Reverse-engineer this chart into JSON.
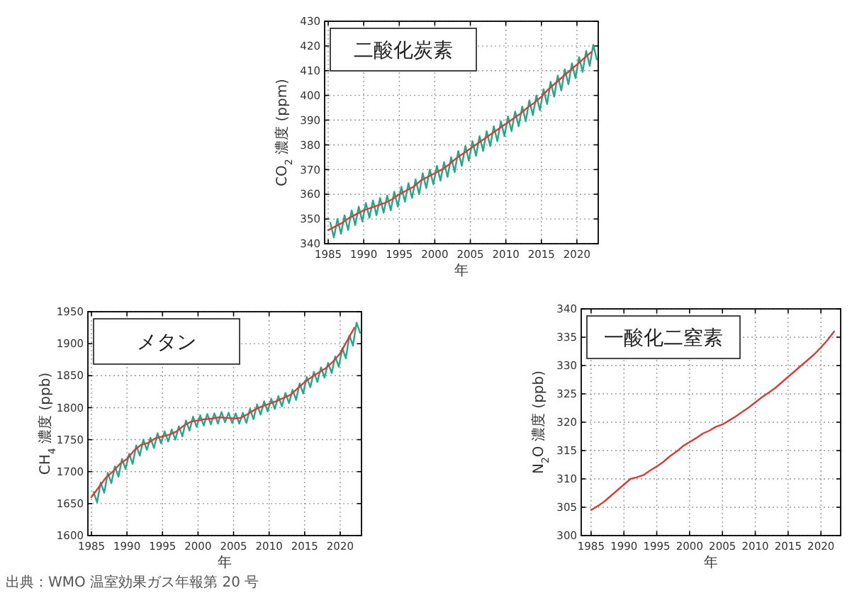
{
  "chart_data": [
    {
      "type": "line",
      "title": "二酸化炭素",
      "xlabel": "年",
      "ylabel": "CO$_{2}$ 濃度 (ppm)",
      "xlim": [
        1984.5,
        2023
      ],
      "ylim": [
        340,
        430
      ],
      "xticks": [
        1985,
        1990,
        1995,
        2000,
        2005,
        2010,
        2015,
        2020
      ],
      "yticks": [
        340,
        350,
        360,
        370,
        380,
        390,
        400,
        410,
        420,
        430
      ],
      "grid": true,
      "line_style": "solid",
      "series": [
        {
          "color": "#2aa58a",
          "x": [
            1985.3,
            1985.8,
            1986.3,
            1986.8,
            1987.3,
            1987.8,
            1988.3,
            1988.8,
            1989.3,
            1989.8,
            1990.3,
            1990.8,
            1991.3,
            1991.8,
            1992.3,
            1992.8,
            1993.3,
            1993.8,
            1994.3,
            1994.8,
            1995.3,
            1995.8,
            1996.3,
            1996.8,
            1997.3,
            1997.8,
            1998.3,
            1998.8,
            1999.3,
            1999.8,
            2000.3,
            2000.8,
            2001.3,
            2001.8,
            2002.3,
            2002.8,
            2003.3,
            2003.8,
            2004.3,
            2004.8,
            2005.3,
            2005.8,
            2006.3,
            2006.8,
            2007.3,
            2007.8,
            2008.3,
            2008.8,
            2009.3,
            2009.8,
            2010.3,
            2010.8,
            2011.3,
            2011.8,
            2012.3,
            2012.8,
            2013.3,
            2013.8,
            2014.3,
            2014.8,
            2015.3,
            2015.8,
            2016.3,
            2016.8,
            2017.3,
            2017.8,
            2018.3,
            2018.8,
            2019.3,
            2019.8,
            2020.3,
            2020.8,
            2021.3,
            2021.8,
            2022.3,
            2022.8
          ],
          "values": [
            348.5,
            342.5,
            350,
            344,
            351.5,
            345.5,
            353.5,
            347.5,
            355,
            349,
            356.5,
            350.5,
            357.5,
            351.5,
            358.5,
            352.5,
            359.5,
            353.5,
            361,
            355,
            363,
            357,
            364.5,
            358.5,
            366,
            360,
            368.5,
            362.5,
            370,
            364,
            371.5,
            365.5,
            373,
            367,
            375,
            369,
            377.5,
            371.5,
            379.5,
            373.5,
            381.5,
            375.5,
            383.5,
            377.5,
            385.5,
            379.5,
            387.5,
            381.5,
            389.5,
            383.5,
            391.5,
            385.5,
            393.5,
            387.5,
            395.5,
            389.5,
            398,
            392,
            400,
            394,
            402.5,
            396.5,
            405.5,
            399.5,
            408,
            402,
            410.5,
            404.5,
            413,
            407,
            415.5,
            409.5,
            418,
            412,
            420.5,
            414.5
          ]
        },
        {
          "color": "#d0403a",
          "x": [
            1985,
            1986,
            1987,
            1988,
            1989,
            1990,
            1991,
            1992,
            1993,
            1994,
            1995,
            1996,
            1997,
            1998,
            1999,
            2000,
            2001,
            2002,
            2003,
            2004,
            2005,
            2006,
            2007,
            2008,
            2009,
            2010,
            2011,
            2012,
            2013,
            2014,
            2015,
            2016,
            2017,
            2018,
            2019,
            2020,
            2021,
            2022
          ],
          "values": [
            345.5,
            347,
            348.5,
            350.5,
            352,
            353.5,
            354.5,
            355.5,
            356.5,
            358,
            360,
            361.5,
            363,
            365.5,
            367,
            368.5,
            370,
            372,
            374.5,
            376.5,
            378.5,
            380.5,
            382.5,
            384.5,
            386.5,
            388.5,
            390.5,
            392.5,
            395,
            397,
            399.5,
            402.5,
            405,
            407.5,
            410,
            412.5,
            415,
            417.5
          ]
        }
      ]
    },
    {
      "type": "line",
      "title": "メタン",
      "xlabel": "年",
      "ylabel": "CH$_{4}$ 濃度 (ppb)",
      "annotations": [
        "出典：WMO 温室効果ガス年報第 20 号"
      ],
      "xlim": [
        1984.5,
        2023
      ],
      "ylim": [
        1600,
        1950
      ],
      "xticks": [
        1985,
        1990,
        1995,
        2000,
        2005,
        2010,
        2015,
        2020
      ],
      "yticks": [
        1600,
        1650,
        1700,
        1750,
        1800,
        1850,
        1900,
        1950
      ],
      "grid": true,
      "line_style": "solid",
      "series": [
        {
          "color": "#2aa58a",
          "x": [
            1985.3,
            1985.8,
            1986.3,
            1986.8,
            1987.3,
            1987.8,
            1988.3,
            1988.8,
            1989.3,
            1989.8,
            1990.3,
            1990.8,
            1991.3,
            1991.8,
            1992.3,
            1992.8,
            1993.3,
            1993.8,
            1994.3,
            1994.8,
            1995.3,
            1995.8,
            1996.3,
            1996.8,
            1997.3,
            1997.8,
            1998.3,
            1998.8,
            1999.3,
            1999.8,
            2000.3,
            2000.8,
            2001.3,
            2001.8,
            2002.3,
            2002.8,
            2003.3,
            2003.8,
            2004.3,
            2004.8,
            2005.3,
            2005.8,
            2006.3,
            2006.8,
            2007.3,
            2007.8,
            2008.3,
            2008.8,
            2009.3,
            2009.8,
            2010.3,
            2010.8,
            2011.3,
            2011.8,
            2012.3,
            2012.8,
            2013.3,
            2013.8,
            2014.3,
            2014.8,
            2015.3,
            2015.8,
            2016.3,
            2016.8,
            2017.3,
            2017.8,
            2018.3,
            2018.8,
            2019.3,
            2019.8,
            2020.3,
            2020.8,
            2021.3,
            2021.8,
            2022.3,
            2022.8
          ],
          "values": [
            1668,
            1652,
            1683,
            1667,
            1698,
            1682,
            1708,
            1692,
            1720,
            1704,
            1728,
            1712,
            1741,
            1725,
            1750,
            1734,
            1753,
            1737,
            1760,
            1744,
            1763,
            1747,
            1766,
            1750,
            1771,
            1755,
            1780,
            1764,
            1786,
            1770,
            1788,
            1772,
            1790,
            1774,
            1791,
            1775,
            1793,
            1777,
            1792,
            1776,
            1791,
            1775,
            1792,
            1776,
            1798,
            1782,
            1805,
            1789,
            1810,
            1794,
            1814,
            1798,
            1818,
            1802,
            1823,
            1807,
            1828,
            1812,
            1838,
            1822,
            1848,
            1832,
            1856,
            1840,
            1863,
            1847,
            1870,
            1854,
            1880,
            1864,
            1893,
            1877,
            1913,
            1897,
            1933,
            1917
          ]
        },
        {
          "color": "#d0403a",
          "x": [
            1985,
            1986,
            1987,
            1988,
            1989,
            1990,
            1991,
            1992,
            1993,
            1994,
            1995,
            1996,
            1997,
            1998,
            1999,
            2000,
            2001,
            2002,
            2003,
            2004,
            2005,
            2006,
            2007,
            2008,
            2009,
            2010,
            2011,
            2012,
            2013,
            2014,
            2015,
            2016,
            2017,
            2018,
            2019,
            2020,
            2021,
            2022
          ],
          "values": [
            1660,
            1675,
            1690,
            1700,
            1712,
            1720,
            1733,
            1742,
            1745,
            1752,
            1755,
            1758,
            1763,
            1772,
            1778,
            1780,
            1782,
            1783,
            1785,
            1784,
            1783,
            1784,
            1790,
            1797,
            1802,
            1806,
            1810,
            1815,
            1820,
            1830,
            1840,
            1848,
            1855,
            1862,
            1872,
            1885,
            1905,
            1925
          ]
        }
      ]
    },
    {
      "type": "line",
      "title": "一酸化二窒素",
      "xlabel": "年",
      "ylabel": "N$_{2}$O 濃度 (ppb)",
      "xlim": [
        1983.5,
        2023
      ],
      "ylim": [
        300,
        340
      ],
      "xticks": [
        1985,
        1990,
        1995,
        2000,
        2005,
        2010,
        2015,
        2020
      ],
      "yticks": [
        300,
        305,
        310,
        315,
        320,
        325,
        330,
        335,
        340
      ],
      "grid": true,
      "line_style": "solid",
      "series": [
        {
          "color": "#d0403a",
          "x": [
            1985,
            1986,
            1987,
            1988,
            1989,
            1990,
            1991,
            1992,
            1993,
            1994,
            1995,
            1996,
            1997,
            1998,
            1999,
            2000,
            2001,
            2002,
            2003,
            2004,
            2005,
            2006,
            2007,
            2008,
            2009,
            2010,
            2011,
            2012,
            2013,
            2014,
            2015,
            2016,
            2017,
            2018,
            2019,
            2020,
            2021,
            2022
          ],
          "values": [
            304.5,
            305.2,
            306,
            307,
            308,
            309,
            310,
            310.3,
            310.7,
            311.5,
            312.2,
            313,
            314,
            314.8,
            315.8,
            316.5,
            317.2,
            318,
            318.5,
            319.2,
            319.6,
            320.3,
            321,
            321.8,
            322.6,
            323.5,
            324.4,
            325.2,
            326,
            327,
            328,
            329,
            330,
            331,
            332,
            333.2,
            334.5,
            336
          ]
        }
      ]
    }
  ]
}
